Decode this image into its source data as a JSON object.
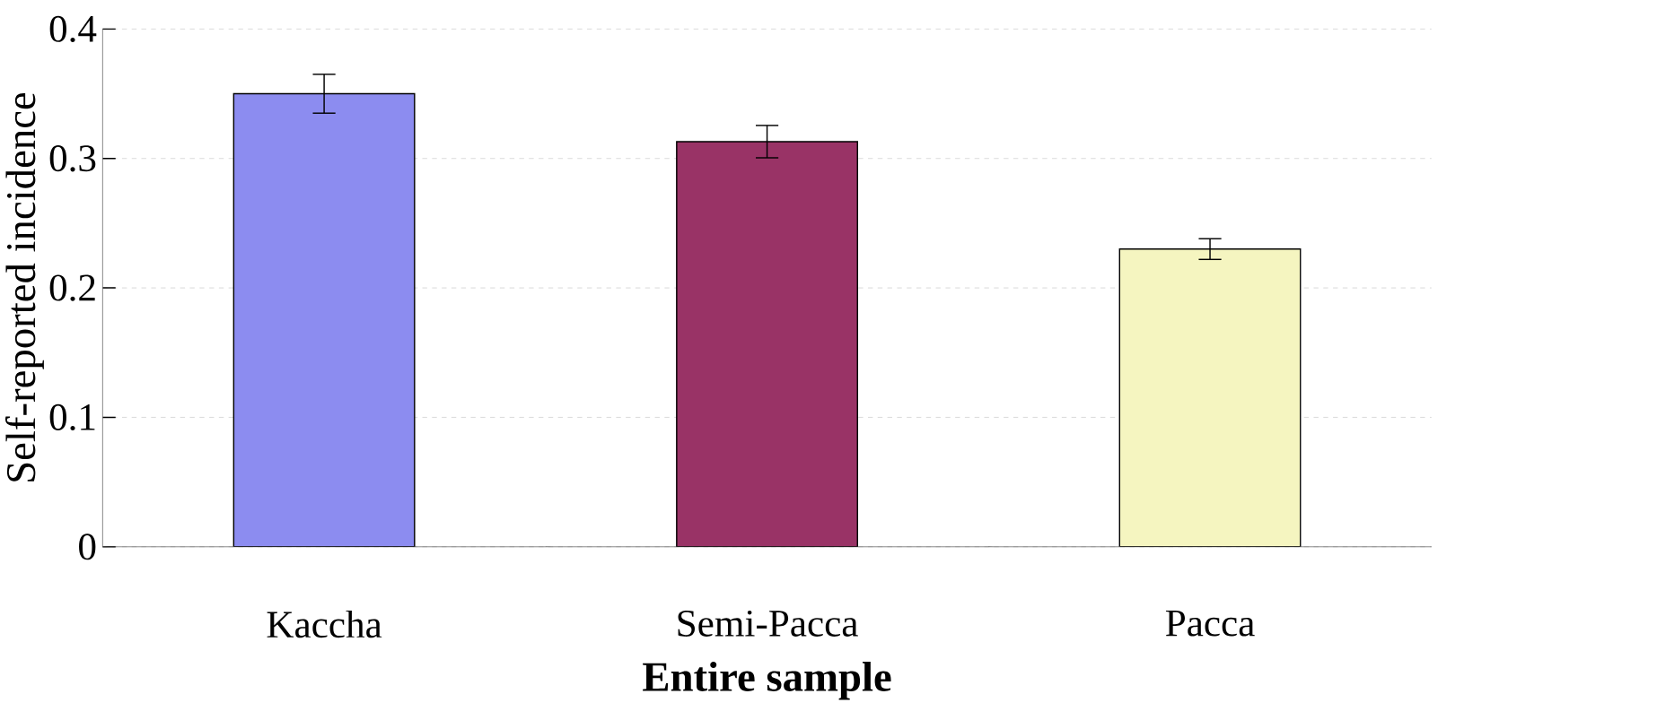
{
  "chart_data": {
    "type": "bar",
    "categories": [
      "Kaccha",
      "Semi-Pacca",
      "Pacca"
    ],
    "values": [
      0.35,
      0.313,
      0.23
    ],
    "errors": [
      0.015,
      0.0125,
      0.008
    ],
    "colors": [
      "#8c8cf0",
      "#993366",
      "#f5f5c0"
    ],
    "xlabel": "Entire sample",
    "ylabel": "Self-reported incidence",
    "ylim": [
      0,
      0.4
    ],
    "yticks": [
      0,
      0.1,
      0.2,
      0.3,
      0.4
    ],
    "grid": "y"
  }
}
